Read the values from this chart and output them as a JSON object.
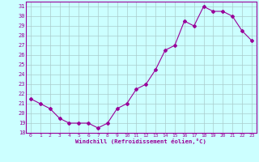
{
  "x": [
    0,
    1,
    2,
    3,
    4,
    5,
    6,
    7,
    8,
    9,
    10,
    11,
    12,
    13,
    14,
    15,
    16,
    17,
    18,
    19,
    20,
    21,
    22,
    23
  ],
  "y": [
    21.5,
    21.0,
    20.5,
    19.5,
    19.0,
    19.0,
    19.0,
    18.5,
    19.0,
    20.5,
    21.0,
    22.5,
    23.0,
    24.5,
    26.5,
    27.0,
    29.5,
    29.0,
    31.0,
    30.5,
    30.5,
    30.0,
    28.5,
    27.5
  ],
  "line_color": "#990099",
  "marker": "D",
  "marker_size": 2,
  "bg_color": "#ccffff",
  "grid_color": "#aacccc",
  "xlabel": "Windchill (Refroidissement éolien,°C)",
  "tick_color": "#990099",
  "xlim": [
    -0.5,
    23.5
  ],
  "ylim": [
    18,
    31.5
  ],
  "yticks": [
    18,
    19,
    20,
    21,
    22,
    23,
    24,
    25,
    26,
    27,
    28,
    29,
    30,
    31
  ],
  "xticks": [
    0,
    1,
    2,
    3,
    4,
    5,
    6,
    7,
    8,
    9,
    10,
    11,
    12,
    13,
    14,
    15,
    16,
    17,
    18,
    19,
    20,
    21,
    22,
    23
  ]
}
